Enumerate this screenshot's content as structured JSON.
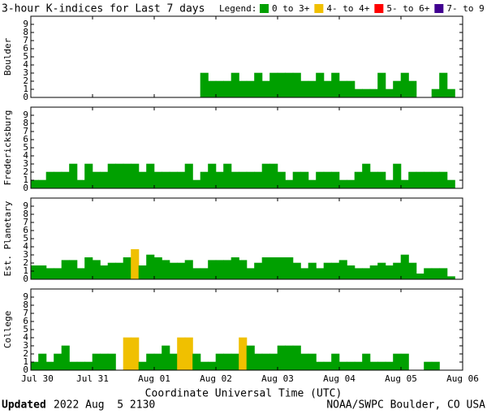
{
  "header": {
    "title": "3-hour K-indices for Last 7 days",
    "legend_title": "Legend:",
    "legend": [
      {
        "name": "0 to 3+",
        "color": "#00a000"
      },
      {
        "name": "4- to 4+",
        "color": "#f0c000"
      },
      {
        "name": "5- to 6+",
        "color": "#ff0000"
      },
      {
        "name": "7- to 9",
        "color": "#400090"
      }
    ]
  },
  "chart_data": [
    {
      "type": "bar",
      "ylabel": "Boulder",
      "ylim": [
        0,
        10
      ],
      "yticks": [
        0,
        1,
        2,
        3,
        4,
        5,
        6,
        7,
        8,
        9
      ],
      "values": [
        0,
        0,
        0,
        0,
        0,
        0,
        0,
        0,
        0,
        0,
        0,
        0,
        0,
        0,
        0,
        0,
        0,
        0,
        0,
        0,
        0,
        0,
        3,
        2,
        2,
        2,
        3,
        2,
        2,
        3,
        2,
        3,
        3,
        3,
        3,
        2,
        2,
        3,
        2,
        3,
        2,
        2,
        1,
        1,
        1,
        3,
        1,
        2,
        3,
        2,
        0,
        0,
        1,
        3,
        1,
        0
      ],
      "colors": [
        "#00a000",
        "#00a000",
        "#00a000",
        "#00a000",
        "#00a000",
        "#00a000",
        "#00a000",
        "#00a000",
        "#00a000",
        "#00a000",
        "#00a000",
        "#00a000",
        "#00a000",
        "#00a000",
        "#00a000",
        "#00a000",
        "#00a000",
        "#00a000",
        "#00a000",
        "#00a000",
        "#00a000",
        "#00a000",
        "#00a000",
        "#00a000",
        "#00a000",
        "#00a000",
        "#00a000",
        "#00a000",
        "#00a000",
        "#00a000",
        "#00a000",
        "#00a000",
        "#00a000",
        "#00a000",
        "#00a000",
        "#00a000",
        "#00a000",
        "#00a000",
        "#00a000",
        "#00a000",
        "#00a000",
        "#00a000",
        "#00a000",
        "#00a000",
        "#00a000",
        "#00a000",
        "#00a000",
        "#00a000",
        "#00a000",
        "#00a000",
        "#00a000",
        "#00a000",
        "#00a000",
        "#00a000",
        "#00a000",
        "#00a000"
      ]
    },
    {
      "type": "bar",
      "ylabel": "Fredericksburg",
      "ylim": [
        0,
        10
      ],
      "yticks": [
        0,
        1,
        2,
        3,
        4,
        5,
        6,
        7,
        8,
        9
      ],
      "values": [
        1,
        1,
        2,
        2,
        2,
        3,
        1,
        3,
        2,
        2,
        3,
        3,
        3,
        3,
        2,
        3,
        2,
        2,
        2,
        2,
        3,
        1,
        2,
        3,
        2,
        3,
        2,
        2,
        2,
        2,
        3,
        3,
        2,
        1,
        2,
        2,
        1,
        2,
        2,
        2,
        1,
        1,
        2,
        3,
        2,
        2,
        1,
        3,
        1,
        2,
        2,
        2,
        2,
        2,
        1,
        0
      ],
      "colors": [
        "#00a000",
        "#00a000",
        "#00a000",
        "#00a000",
        "#00a000",
        "#00a000",
        "#00a000",
        "#00a000",
        "#00a000",
        "#00a000",
        "#00a000",
        "#00a000",
        "#00a000",
        "#00a000",
        "#00a000",
        "#00a000",
        "#00a000",
        "#00a000",
        "#00a000",
        "#00a000",
        "#00a000",
        "#00a000",
        "#00a000",
        "#00a000",
        "#00a000",
        "#00a000",
        "#00a000",
        "#00a000",
        "#00a000",
        "#00a000",
        "#00a000",
        "#00a000",
        "#00a000",
        "#00a000",
        "#00a000",
        "#00a000",
        "#00a000",
        "#00a000",
        "#00a000",
        "#00a000",
        "#00a000",
        "#00a000",
        "#00a000",
        "#00a000",
        "#00a000",
        "#00a000",
        "#00a000",
        "#00a000",
        "#00a000",
        "#00a000",
        "#00a000",
        "#00a000",
        "#00a000",
        "#00a000",
        "#00a000",
        "#00a000"
      ]
    },
    {
      "type": "bar",
      "ylabel": "Est. Planetary",
      "ylim": [
        0,
        10
      ],
      "yticks": [
        0,
        1,
        2,
        3,
        4,
        5,
        6,
        7,
        8,
        9
      ],
      "values": [
        1.67,
        1.67,
        1.33,
        1.33,
        2.33,
        2.33,
        1.33,
        2.67,
        2.33,
        1.67,
        2,
        2,
        2.67,
        3.67,
        1.67,
        3,
        2.67,
        2.33,
        2,
        2,
        2.33,
        1.33,
        1.33,
        2.33,
        2.33,
        2.33,
        2.67,
        2.33,
        1.33,
        2,
        2.67,
        2.67,
        2.67,
        2.67,
        2,
        1.33,
        2,
        1.33,
        2,
        2,
        2.33,
        1.67,
        1.33,
        1.33,
        1.67,
        2,
        1.67,
        2,
        3,
        2,
        0.67,
        1.33,
        1.33,
        1.33,
        0.33,
        0
      ],
      "colors": [
        "#00a000",
        "#00a000",
        "#00a000",
        "#00a000",
        "#00a000",
        "#00a000",
        "#00a000",
        "#00a000",
        "#00a000",
        "#00a000",
        "#00a000",
        "#00a000",
        "#00a000",
        "#f0c000",
        "#00a000",
        "#00a000",
        "#00a000",
        "#00a000",
        "#00a000",
        "#00a000",
        "#00a000",
        "#00a000",
        "#00a000",
        "#00a000",
        "#00a000",
        "#00a000",
        "#00a000",
        "#00a000",
        "#00a000",
        "#00a000",
        "#00a000",
        "#00a000",
        "#00a000",
        "#00a000",
        "#00a000",
        "#00a000",
        "#00a000",
        "#00a000",
        "#00a000",
        "#00a000",
        "#00a000",
        "#00a000",
        "#00a000",
        "#00a000",
        "#00a000",
        "#00a000",
        "#00a000",
        "#00a000",
        "#00a000",
        "#00a000",
        "#00a000",
        "#00a000",
        "#00a000",
        "#00a000",
        "#00a000",
        "#00a000"
      ]
    },
    {
      "type": "bar",
      "ylabel": "College",
      "ylim": [
        0,
        10
      ],
      "yticks": [
        0,
        1,
        2,
        3,
        4,
        5,
        6,
        7,
        8,
        9
      ],
      "values": [
        1,
        2,
        1,
        2,
        3,
        1,
        1,
        1,
        2,
        2,
        2,
        0,
        4,
        4,
        1,
        2,
        2,
        3,
        2,
        4,
        4,
        2,
        1,
        1,
        2,
        2,
        2,
        4,
        3,
        2,
        2,
        2,
        3,
        3,
        3,
        2,
        2,
        1,
        1,
        2,
        1,
        1,
        1,
        2,
        1,
        1,
        1,
        2,
        2,
        0,
        0,
        1,
        1,
        0,
        0,
        0
      ],
      "colors": [
        "#00a000",
        "#00a000",
        "#00a000",
        "#00a000",
        "#00a000",
        "#00a000",
        "#00a000",
        "#00a000",
        "#00a000",
        "#00a000",
        "#00a000",
        "#00a000",
        "#f0c000",
        "#f0c000",
        "#00a000",
        "#00a000",
        "#00a000",
        "#00a000",
        "#00a000",
        "#f0c000",
        "#f0c000",
        "#00a000",
        "#00a000",
        "#00a000",
        "#00a000",
        "#00a000",
        "#00a000",
        "#f0c000",
        "#00a000",
        "#00a000",
        "#00a000",
        "#00a000",
        "#00a000",
        "#00a000",
        "#00a000",
        "#00a000",
        "#00a000",
        "#00a000",
        "#00a000",
        "#00a000",
        "#00a000",
        "#00a000",
        "#00a000",
        "#00a000",
        "#00a000",
        "#00a000",
        "#00a000",
        "#00a000",
        "#00a000",
        "#00a000",
        "#00a000",
        "#00a000",
        "#00a000",
        "#00a000",
        "#00a000",
        "#00a000"
      ]
    }
  ],
  "x_axis": {
    "label": "Coordinate Universal Time (UTC)",
    "ticks": [
      "Jul 30",
      "Jul 31",
      "Aug 01",
      "Aug 02",
      "Aug 03",
      "Aug 04",
      "Aug 05",
      "Aug 06"
    ]
  },
  "footer": {
    "updated_label": "Updated",
    "updated": "2022 Aug  5 2130",
    "credit": "NOAA/SWPC Boulder, CO USA"
  }
}
